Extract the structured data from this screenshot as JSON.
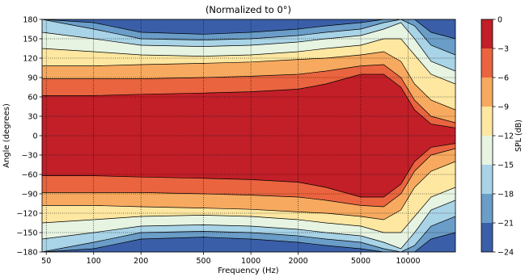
{
  "chart_data": {
    "type": "heatmap",
    "subtype": "filled-contour",
    "title": "(Normalized to 0°)",
    "xlabel": "Frequency (Hz)",
    "ylabel": "Angle (degrees)",
    "x_scale": "log",
    "xlim": [
      47,
      20000
    ],
    "ylim": [
      -180,
      180
    ],
    "x_ticks": [
      50,
      100,
      200,
      500,
      1000,
      2000,
      5000,
      10000
    ],
    "x_tick_labels": [
      "50",
      "100",
      "200",
      "500",
      "1000",
      "2000",
      "5000",
      "10000"
    ],
    "y_ticks": [
      -180,
      -150,
      -120,
      -90,
      -60,
      -30,
      0,
      30,
      60,
      90,
      120,
      150,
      180
    ],
    "y_tick_labels": [
      "−180",
      "−150",
      "−120",
      "−90",
      "−60",
      "−30",
      "0",
      "30",
      "60",
      "90",
      "120",
      "150",
      "180"
    ],
    "grid": true,
    "colorbar": {
      "label": "SPL (dB)",
      "levels": [
        -24,
        -21,
        -18,
        -15,
        -12,
        -9,
        -6,
        -3,
        0
      ],
      "tick_labels": [
        "−24",
        "−21",
        "−18",
        "−15",
        "−12",
        "−9",
        "−6",
        "−3",
        "0"
      ],
      "colors": [
        "#3a5fa8",
        "#6a9dc8",
        "#a9d3e6",
        "#e6f4e1",
        "#fde7a1",
        "#f7aa5f",
        "#e9643f",
        "#c21f28"
      ]
    },
    "contour_edges_deg": {
      "frequency_hz": [
        47,
        100,
        200,
        500,
        1000,
        2000,
        3000,
        5000,
        7000,
        9000,
        11000,
        14000,
        20000
      ],
      "-3": [
        62,
        62,
        64,
        66,
        68,
        72,
        80,
        95,
        95,
        75,
        40,
        18,
        12
      ],
      "-6": [
        88,
        88,
        88,
        90,
        92,
        95,
        100,
        108,
        110,
        90,
        55,
        30,
        20
      ],
      "-9": [
        108,
        108,
        110,
        112,
        114,
        118,
        120,
        125,
        130,
        115,
        80,
        55,
        40
      ],
      "-12": [
        135,
        130,
        125,
        123,
        125,
        130,
        135,
        140,
        150,
        150,
        125,
        95,
        80
      ],
      "-15": [
        160,
        150,
        140,
        138,
        140,
        145,
        150,
        155,
        165,
        175,
        150,
        115,
        100
      ],
      "-18": [
        180,
        165,
        150,
        148,
        150,
        155,
        160,
        165,
        175,
        180,
        170,
        140,
        125
      ],
      "-21": [
        180,
        175,
        160,
        157,
        160,
        165,
        170,
        175,
        180,
        180,
        180,
        160,
        150
      ]
    }
  }
}
